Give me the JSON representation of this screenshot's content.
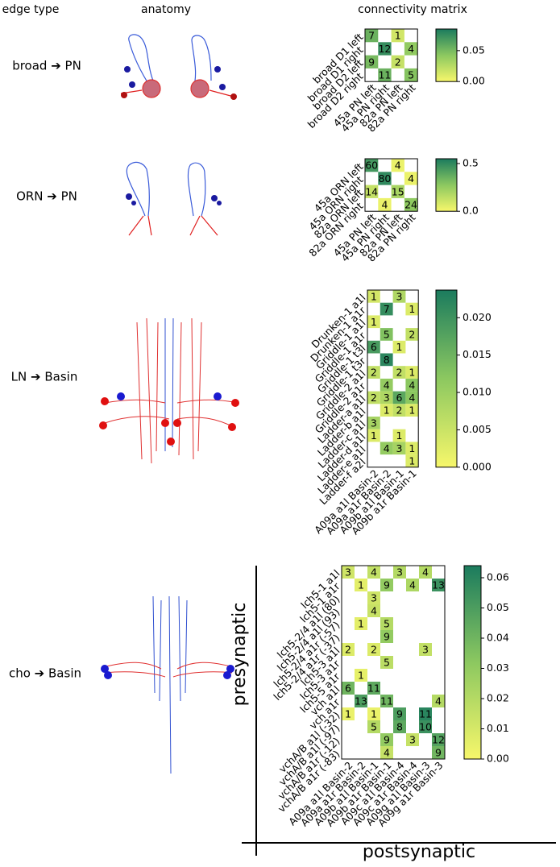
{
  "headers": {
    "edge_type": "edge type",
    "anatomy": "anatomy",
    "matrix": "connectivity matrix"
  },
  "chart_data": [
    {
      "type": "heatmap",
      "title": "broad ➔ PN",
      "rows": [
        "broad D1 left",
        "broad D1 right",
        "broad D2 left",
        "broad D2 right"
      ],
      "columns": [
        "45a PN left",
        "45a PN right",
        "82a PN left",
        "82a PN right"
      ],
      "values": [
        [
          0.055,
          null,
          0.015,
          null
        ],
        [
          null,
          0.075,
          null,
          0.04
        ],
        [
          0.05,
          null,
          0.02,
          null
        ],
        [
          null,
          0.055,
          null,
          0.045
        ]
      ],
      "counts": [
        [
          7,
          null,
          1,
          null
        ],
        [
          null,
          12,
          null,
          4
        ],
        [
          9,
          null,
          2,
          null
        ],
        [
          null,
          11,
          null,
          5
        ]
      ],
      "zlim": [
        0,
        0.085
      ],
      "zticks": [
        {
          "value": 0,
          "label": "0.00"
        },
        0.05
      ],
      "colormap": [
        "#f7f76b",
        "#8cc860",
        "#1b7b5e"
      ]
    },
    {
      "type": "heatmap",
      "title": "ORN ➔ PN",
      "rows": [
        "45a ORN left",
        "45a ORN right",
        "82a ORN left",
        "82a ORN right"
      ],
      "columns": [
        "45a PN left",
        "45a PN right",
        "82a PN left",
        "82a PN right"
      ],
      "values": [
        [
          0.45,
          null,
          0.03,
          null
        ],
        [
          null,
          0.5,
          null,
          0.03
        ],
        [
          0.13,
          null,
          0.2,
          null
        ],
        [
          null,
          0.03,
          null,
          0.27
        ]
      ],
      "counts": [
        [
          60,
          null,
          4,
          null
        ],
        [
          null,
          80,
          null,
          4
        ],
        [
          14,
          null,
          15,
          null
        ],
        [
          null,
          4,
          null,
          24
        ]
      ],
      "zlim": [
        0,
        0.55
      ],
      "zticks": [
        {
          "value": 0,
          "label": "0.0"
        },
        0.5
      ],
      "colormap": [
        "#f7f76b",
        "#8cc860",
        "#1b7b5e"
      ]
    },
    {
      "type": "heatmap",
      "title": "LN ➔ Basin",
      "rows": [
        "Drunken-1 a1l",
        "Drunken-1 a1r",
        "Griddle-1 a1l",
        "Griddle-1 a1r",
        "Griddle-1 t3l",
        "Griddle-1 t3r",
        "Griddle-2 a1l",
        "Griddle-2 a1r",
        "Ladder-a a1l",
        "Ladder-b a1l",
        "Ladder-c a1l",
        "Ladder-d a1l",
        "Ladder-e a1l",
        "Ladder-f a2l"
      ],
      "columns": [
        "A09a a1l Basin-2",
        "A09a a1r Basin-2",
        "A09b a1l Basin-1",
        "A09b a1r Basin-1"
      ],
      "values": [
        [
          0.004,
          null,
          0.008,
          null
        ],
        [
          null,
          0.021,
          null,
          0.003
        ],
        [
          0.003,
          null,
          null,
          null
        ],
        [
          null,
          0.013,
          null,
          0.006
        ],
        [
          0.019,
          null,
          0.003,
          null
        ],
        [
          null,
          0.022,
          null,
          null
        ],
        [
          0.006,
          null,
          0.006,
          0.003
        ],
        [
          null,
          0.011,
          null,
          0.012
        ],
        [
          0.006,
          0.008,
          0.017,
          0.012
        ],
        [
          null,
          0.003,
          0.006,
          0.003
        ],
        [
          0.009,
          null,
          null,
          null
        ],
        [
          0.003,
          null,
          0.003,
          null
        ],
        [
          null,
          0.011,
          0.009,
          0.003
        ],
        [
          null,
          null,
          null,
          0.003
        ]
      ],
      "counts": [
        [
          1,
          null,
          3,
          null
        ],
        [
          null,
          7,
          null,
          1
        ],
        [
          1,
          null,
          null,
          null
        ],
        [
          null,
          5,
          null,
          2
        ],
        [
          6,
          null,
          1,
          null
        ],
        [
          null,
          8,
          null,
          null
        ],
        [
          2,
          null,
          2,
          1
        ],
        [
          null,
          4,
          null,
          4
        ],
        [
          2,
          3,
          6,
          4
        ],
        [
          null,
          1,
          2,
          1
        ],
        [
          3,
          null,
          null,
          null
        ],
        [
          1,
          null,
          1,
          null
        ],
        [
          null,
          4,
          3,
          1
        ],
        [
          null,
          null,
          null,
          1
        ]
      ],
      "zlim": [
        0,
        0.0237
      ],
      "zticks": [
        {
          "value": 0,
          "label": "0.000"
        },
        0.005,
        {
          "value": 0.01,
          "label": "0.010"
        },
        0.015,
        {
          "value": 0.02,
          "label": "0.020"
        }
      ],
      "colormap": [
        "#f7f76b",
        "#8cc860",
        "#1b7b5e"
      ]
    },
    {
      "type": "heatmap",
      "title": "cho ➔ Basin",
      "y_label": "presynaptic",
      "x_label": "postsynaptic",
      "rows": [
        "lch5-1 a1l",
        "lch5-1 a1r",
        "lch5-2/4 a1l (80)",
        "lch5-2/4 a1l (93)",
        "lch5-2/4 a1r (-57)",
        "lch5-2/4 a1r (-37)",
        "lch5-3 a1l",
        "lch5-3 a1r",
        "lch5-5 a1r",
        "vch a1l",
        "vch a1r",
        "vchA/B a1l (-32)",
        "vchA/B a1l (-97)",
        "vchA/B a1r (-12)",
        "vchA/B a1r (-83)"
      ],
      "columns": [
        "A09a a1l Basin-2",
        "A09a a1r Basin-2",
        "A09b a1l Basin-1",
        "A09b a1r Basin-1",
        "A09c a1l Basin-4",
        "A09c a1r Basin-4",
        "A09g a1l Basin-3",
        "A09g a1r Basin-3"
      ],
      "values": [
        [
          0.012,
          null,
          0.016,
          null,
          0.02,
          null,
          0.02,
          null
        ],
        [
          null,
          0.006,
          null,
          0.03,
          null,
          0.022,
          null,
          0.055
        ],
        [
          null,
          null,
          0.012,
          null,
          null,
          null,
          null,
          null
        ],
        [
          null,
          null,
          0.014,
          null,
          null,
          null,
          null,
          null
        ],
        [
          null,
          0.006,
          null,
          0.02,
          null,
          null,
          null,
          null
        ],
        [
          null,
          null,
          null,
          0.03,
          null,
          null,
          null,
          null
        ],
        [
          0.008,
          null,
          0.008,
          null,
          null,
          null,
          0.016,
          null
        ],
        [
          null,
          null,
          null,
          0.018,
          null,
          null,
          null,
          null
        ],
        [
          null,
          0.005,
          null,
          null,
          null,
          null,
          null,
          null
        ],
        [
          0.04,
          null,
          0.045,
          null,
          null,
          null,
          null,
          null
        ],
        [
          null,
          0.05,
          null,
          0.04,
          null,
          null,
          null,
          0.02
        ],
        [
          0.004,
          null,
          0.004,
          null,
          0.05,
          null,
          0.06,
          null
        ],
        [
          null,
          null,
          0.02,
          null,
          0.045,
          null,
          0.055,
          null
        ],
        [
          null,
          null,
          null,
          0.03,
          null,
          0.015,
          null,
          0.048
        ],
        [
          null,
          null,
          null,
          0.015,
          null,
          null,
          null,
          0.04
        ]
      ],
      "counts": [
        [
          3,
          null,
          4,
          null,
          3,
          null,
          4,
          null
        ],
        [
          null,
          1,
          null,
          9,
          null,
          4,
          null,
          13
        ],
        [
          null,
          null,
          3,
          null,
          null,
          null,
          null,
          null
        ],
        [
          null,
          null,
          4,
          null,
          null,
          null,
          null,
          null
        ],
        [
          null,
          1,
          null,
          5,
          null,
          null,
          null,
          null
        ],
        [
          null,
          null,
          null,
          9,
          null,
          null,
          null,
          null
        ],
        [
          2,
          null,
          2,
          null,
          null,
          null,
          3,
          null
        ],
        [
          null,
          null,
          null,
          5,
          null,
          null,
          null,
          null
        ],
        [
          null,
          1,
          null,
          null,
          null,
          null,
          null,
          null
        ],
        [
          6,
          null,
          11,
          null,
          null,
          null,
          null,
          null
        ],
        [
          null,
          13,
          null,
          11,
          null,
          null,
          null,
          4
        ],
        [
          1,
          null,
          1,
          null,
          9,
          null,
          11,
          null
        ],
        [
          null,
          null,
          5,
          null,
          8,
          null,
          10,
          null
        ],
        [
          null,
          null,
          null,
          9,
          null,
          3,
          null,
          12
        ],
        [
          null,
          null,
          null,
          4,
          null,
          null,
          null,
          9
        ]
      ],
      "zlim": [
        0,
        0.064
      ],
      "zticks": [
        {
          "value": 0,
          "label": "0.00"
        },
        0.01,
        0.02,
        0.03,
        0.04,
        0.05,
        0.06
      ],
      "colormap": [
        "#f7f76b",
        "#8cc860",
        "#1b7b5e"
      ]
    }
  ]
}
